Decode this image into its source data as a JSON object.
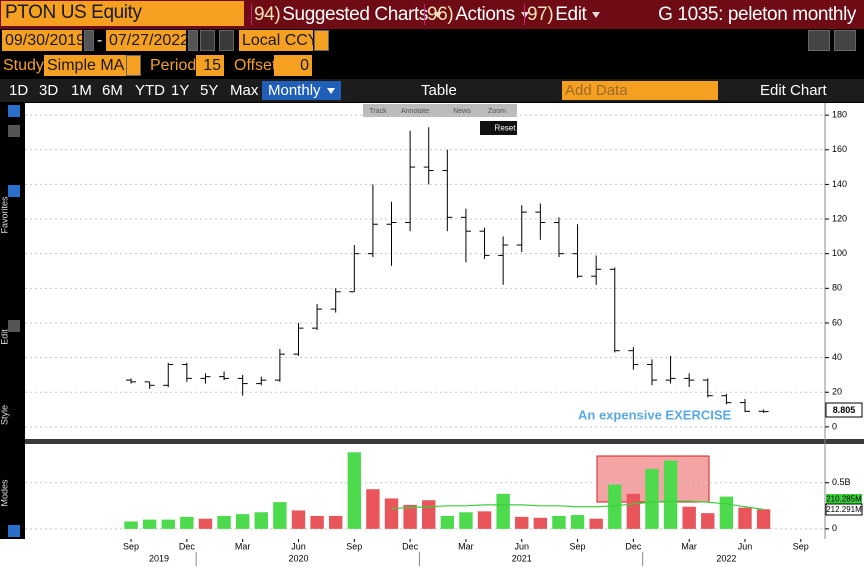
{
  "header": {
    "ticker": "PTON US Equity",
    "menus": [
      {
        "number": "94)",
        "label": "Suggested Charts"
      },
      {
        "number": "96)",
        "label": "Actions"
      },
      {
        "number": "97)",
        "label": "Edit"
      }
    ],
    "title": "G 1035: peleton monthly"
  },
  "controls": {
    "start_date": "09/30/2019",
    "date_separator": "-",
    "end_date": "07/27/2022",
    "currency": "Local CCY",
    "study_label": "Study",
    "study": "Simple MA",
    "period_label": "Period",
    "period": 15,
    "offset_label": "Offset",
    "offset": 0,
    "ranges": [
      "1D",
      "3D",
      "1M",
      "6M",
      "YTD",
      "1Y",
      "5Y",
      "Max"
    ],
    "frequency": "Monthly",
    "table": "Table",
    "add_data": "Add Data",
    "edit_chart": "Edit Chart",
    "tools": [
      "Track",
      "Annotate",
      "News",
      "Zoom"
    ],
    "reset": "Reset"
  },
  "sidebar": [
    "Favorites",
    "Edit",
    "Style",
    "Modes"
  ],
  "chart_data": {
    "type": "ohlc",
    "annotation": "An expensive EXERCISE",
    "categories": [
      "Sep",
      null,
      null,
      "Dec",
      null,
      null,
      "Mar",
      null,
      null,
      "Jun",
      null,
      null,
      "Sep",
      null,
      null,
      "Dec",
      null,
      null,
      "Mar",
      null,
      null,
      "Jun",
      null,
      null,
      "Sep",
      null,
      null,
      "Dec",
      null,
      null,
      "Mar",
      null,
      null,
      "Jun",
      null,
      null,
      "Sep"
    ],
    "year_labels": [
      "2019",
      "2020",
      "2021",
      "2022"
    ],
    "xlim": [
      -5.7,
      37.3
    ],
    "open": [
      27,
      26,
      24,
      36,
      28,
      29,
      28,
      25,
      27,
      42,
      57,
      68,
      78,
      100,
      117,
      118,
      150,
      148,
      121,
      113,
      99,
      105,
      124,
      118,
      100,
      87,
      91,
      44,
      36,
      27,
      28,
      27,
      18,
      14,
      9,
      null,
      null
    ],
    "high": [
      28,
      26,
      37,
      37,
      31,
      32,
      30,
      29,
      45,
      60,
      71,
      80,
      105,
      140,
      130,
      171,
      173,
      160,
      126,
      115,
      110,
      128,
      129,
      121,
      117,
      99,
      92,
      46,
      39,
      41,
      31,
      28,
      19,
      16,
      10,
      null,
      null
    ],
    "low": [
      25,
      22,
      23,
      26,
      25,
      27,
      18,
      24,
      26,
      41,
      56,
      66,
      78,
      98,
      93,
      113,
      140,
      113,
      95,
      97,
      82,
      101,
      108,
      98,
      86,
      82,
      43,
      33,
      24,
      25,
      23,
      17,
      13,
      8.5,
      8,
      null,
      null
    ],
    "close": [
      26,
      24,
      36,
      28,
      29,
      28,
      25,
      27,
      42,
      57,
      68,
      78,
      100,
      117,
      118,
      150,
      148,
      121,
      113,
      99,
      105,
      124,
      118,
      100,
      87,
      91,
      44,
      36,
      27,
      28,
      27,
      18,
      14,
      9,
      8.805,
      null,
      null
    ],
    "color": "#000000",
    "ylim": [
      -7,
      187
    ],
    "yticks": [
      0,
      20,
      40,
      60,
      80,
      100,
      120,
      140,
      160,
      180
    ],
    "grid": true,
    "volume": {
      "type": "bar",
      "values": [
        0.08,
        0.1,
        0.1,
        0.13,
        0.11,
        0.14,
        0.16,
        0.18,
        0.29,
        0.2,
        0.14,
        0.14,
        0.83,
        0.43,
        0.33,
        0.26,
        0.31,
        0.14,
        0.18,
        0.19,
        0.38,
        0.13,
        0.12,
        0.14,
        0.15,
        0.11,
        0.48,
        0.38,
        0.65,
        0.74,
        0.24,
        0.17,
        0.35,
        0.23,
        0.212291,
        null,
        null
      ],
      "value_labels": [
        null,
        null,
        null,
        null,
        null,
        null,
        null,
        null,
        null,
        null,
        null,
        null,
        null,
        null,
        null,
        null,
        null,
        null,
        null,
        null,
        null,
        null,
        null,
        null,
        null,
        null,
        null,
        null,
        null,
        null,
        null,
        null,
        null,
        null,
        "212.291M",
        null,
        null
      ],
      "colors": [
        "#4ddb4d",
        "#4ddb4d",
        "#4ddb4d",
        "#4ddb4d",
        "#e8555a",
        "#4ddb4d",
        "#4ddb4d",
        "#4ddb4d",
        "#4ddb4d",
        "#e8555a",
        "#e8555a",
        "#e8555a",
        "#4ddb4d",
        "#e8555a",
        "#e8555a",
        "#e8555a",
        "#e8555a",
        "#4ddb4d",
        "#4ddb4d",
        "#e8555a",
        "#4ddb4d",
        "#e8555a",
        "#e8555a",
        "#4ddb4d",
        "#4ddb4d",
        "#e8555a",
        "#4ddb4d",
        "#e8555a",
        "#4ddb4d",
        "#4ddb4d",
        "#e8555a",
        "#e8555a",
        "#4ddb4d",
        "#e8555a",
        "#e8555a",
        null,
        null
      ],
      "moving_average": {
        "color": "#3ccf3c",
        "values": [
          null,
          null,
          null,
          null,
          null,
          null,
          null,
          null,
          null,
          null,
          null,
          null,
          null,
          null,
          0.22,
          0.23,
          0.24,
          0.25,
          0.25,
          0.26,
          0.26,
          0.26,
          0.25,
          0.25,
          0.24,
          0.24,
          0.25,
          0.27,
          0.29,
          0.3,
          0.3,
          0.29,
          0.27,
          0.24,
          0.210285,
          null,
          null
        ],
        "value_labels": [
          null,
          null,
          null,
          null,
          null,
          null,
          null,
          null,
          null,
          null,
          null,
          null,
          null,
          null,
          null,
          null,
          null,
          null,
          null,
          null,
          null,
          null,
          null,
          null,
          null,
          null,
          null,
          null,
          null,
          null,
          null,
          null,
          null,
          null,
          "210.285M",
          null,
          null
        ]
      },
      "ylim": [
        -0.11,
        0.92
      ],
      "yticks": [
        0,
        {
          "value": 0.5,
          "label": "0.5B"
        }
      ],
      "grid": true
    }
  }
}
